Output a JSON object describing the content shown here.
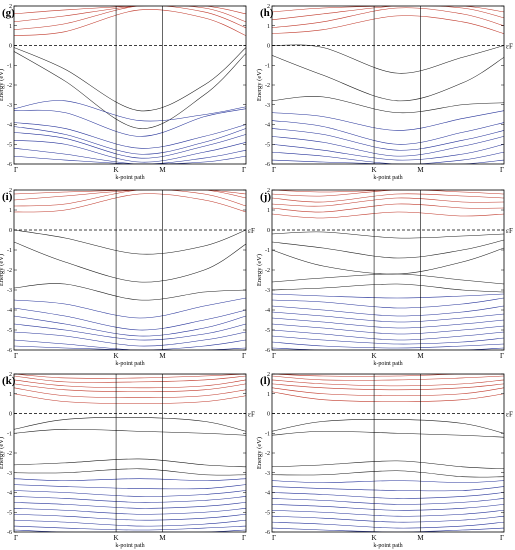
{
  "chart_data": [
    {
      "type": "line",
      "panel_label": "(g)",
      "x_ticks": [
        "Γ",
        "K",
        "M",
        "Γ"
      ],
      "xlabel": "k-point path",
      "ylabel": "Energy (eV)",
      "ylim": [
        -6,
        2
      ],
      "y_ticks": [
        "-6",
        "-5",
        "-4",
        "-3",
        "-2",
        "-1",
        "0",
        "1",
        "2"
      ],
      "fermi_level": 0,
      "fermi_label": "εF",
      "show_fermi_label": false,
      "conduction_color": "#c0392b",
      "mid_valence_color": "#1f1f1f",
      "deep_valence_color": "#27349a",
      "conduction_bands": [
        [
          0.5,
          0.7,
          1.8,
          1.4,
          0.5
        ],
        [
          0.8,
          1.1,
          2.0,
          1.7,
          0.9
        ],
        [
          1.2,
          1.5,
          2.0,
          1.9,
          1.2
        ],
        [
          1.6,
          1.8,
          2.0,
          2.0,
          1.6
        ]
      ],
      "valence_bands": [
        [
          -0.1,
          -1.2,
          -3.3,
          -2.0,
          -0.1
        ],
        [
          -0.3,
          -1.8,
          -4.2,
          -2.5,
          -0.4
        ],
        [
          -3.2,
          -2.8,
          -3.8,
          -3.5,
          -3.1
        ],
        [
          -3.3,
          -3.4,
          -4.6,
          -3.6,
          -3.2
        ],
        [
          -3.9,
          -4.2,
          -5.2,
          -4.6,
          -4.0
        ],
        [
          -4.1,
          -4.5,
          -5.5,
          -4.9,
          -4.2
        ],
        [
          -4.4,
          -4.7,
          -5.7,
          -5.1,
          -4.5
        ],
        [
          -4.8,
          -5.0,
          -5.9,
          -5.4,
          -4.9
        ],
        [
          -5.2,
          -5.5,
          -6.0,
          -5.7,
          -5.3
        ],
        [
          -5.6,
          -5.8,
          -6.0,
          -5.9,
          -5.6
        ]
      ]
    },
    {
      "type": "line",
      "panel_label": "(h)",
      "x_ticks": [
        "Γ",
        "K",
        "M",
        "Γ"
      ],
      "xlabel": "k-point path",
      "ylabel": "Energy (eV)",
      "ylim": [
        -6,
        2
      ],
      "y_ticks": [
        "-6",
        "-5",
        "-4",
        "-3",
        "-2",
        "-1",
        "0",
        "1",
        "2"
      ],
      "fermi_level": 0,
      "fermi_label": "εF",
      "show_fermi_label": true,
      "conduction_color": "#c0392b",
      "mid_valence_color": "#1f1f1f",
      "deep_valence_color": "#27349a",
      "conduction_bands": [
        [
          0.6,
          0.8,
          1.5,
          1.2,
          0.6
        ],
        [
          0.9,
          1.2,
          1.9,
          1.6,
          1.0
        ],
        [
          1.3,
          1.6,
          2.0,
          1.9,
          1.4
        ],
        [
          1.7,
          1.9,
          2.0,
          2.0,
          1.7
        ]
      ],
      "valence_bands": [
        [
          0.0,
          -0.1,
          -1.4,
          -0.6,
          0.0
        ],
        [
          -0.5,
          -1.5,
          -2.8,
          -1.9,
          -0.6
        ],
        [
          -2.8,
          -2.6,
          -3.4,
          -3.0,
          -2.9
        ],
        [
          -3.4,
          -3.6,
          -4.3,
          -3.7,
          -3.3
        ],
        [
          -3.8,
          -4.1,
          -5.0,
          -4.4,
          -3.9
        ],
        [
          -4.2,
          -4.5,
          -5.3,
          -4.8,
          -4.3
        ],
        [
          -4.6,
          -4.9,
          -5.6,
          -5.1,
          -4.6
        ],
        [
          -5.0,
          -5.3,
          -5.8,
          -5.5,
          -5.0
        ],
        [
          -5.4,
          -5.6,
          -6.0,
          -5.8,
          -5.4
        ],
        [
          -5.8,
          -5.9,
          -6.0,
          -6.0,
          -5.8
        ]
      ]
    },
    {
      "type": "line",
      "panel_label": "(i)",
      "x_ticks": [
        "Γ",
        "K",
        "M",
        "Γ"
      ],
      "xlabel": "k-point path",
      "ylabel": "Energy (eV)",
      "ylim": [
        -6,
        2
      ],
      "y_ticks": [
        "-6",
        "-5",
        "-4",
        "-3",
        "-2",
        "-1",
        "0",
        "1",
        "2"
      ],
      "fermi_level": 0,
      "fermi_label": "εF",
      "show_fermi_label": true,
      "conduction_color": "#c0392b",
      "mid_valence_color": "#1f1f1f",
      "deep_valence_color": "#27349a",
      "conduction_bands": [
        [
          0.9,
          1.0,
          1.8,
          1.5,
          0.9
        ],
        [
          1.2,
          1.3,
          2.0,
          1.8,
          1.2
        ],
        [
          1.5,
          1.7,
          2.0,
          2.0,
          1.6
        ],
        [
          1.8,
          1.9,
          2.0,
          2.0,
          1.8
        ]
      ],
      "valence_bands": [
        [
          0.0,
          -0.4,
          -1.2,
          -0.8,
          0.0
        ],
        [
          -0.6,
          -1.6,
          -2.6,
          -2.0,
          -0.7
        ],
        [
          -2.9,
          -2.7,
          -3.5,
          -3.1,
          -3.0
        ],
        [
          -3.5,
          -3.7,
          -4.4,
          -3.8,
          -3.4
        ],
        [
          -3.9,
          -4.3,
          -5.0,
          -4.5,
          -4.0
        ],
        [
          -4.3,
          -4.7,
          -5.3,
          -4.9,
          -4.3
        ],
        [
          -4.7,
          -5.0,
          -5.5,
          -5.2,
          -4.7
        ],
        [
          -5.1,
          -5.3,
          -5.8,
          -5.5,
          -5.1
        ],
        [
          -5.5,
          -5.7,
          -6.0,
          -5.8,
          -5.5
        ],
        [
          -5.8,
          -5.9,
          -6.0,
          -6.0,
          -5.9
        ]
      ]
    },
    {
      "type": "line",
      "panel_label": "(j)",
      "x_ticks": [
        "Γ",
        "K",
        "M",
        "Γ"
      ],
      "xlabel": "k-point path",
      "ylabel": "Energy (eV)",
      "ylim": [
        -6,
        2
      ],
      "y_ticks": [
        "-6",
        "-5",
        "-4",
        "-3",
        "-2",
        "-1",
        "0",
        "1",
        "2"
      ],
      "fermi_level": 0,
      "fermi_label": "εF",
      "show_fermi_label": true,
      "conduction_color": "#c0392b",
      "mid_valence_color": "#1f1f1f",
      "deep_valence_color": "#27349a",
      "conduction_bands": [
        [
          0.8,
          0.6,
          0.9,
          0.7,
          0.8
        ],
        [
          1.1,
          0.9,
          1.3,
          1.1,
          1.1
        ],
        [
          1.3,
          1.2,
          1.6,
          1.4,
          1.4
        ],
        [
          1.6,
          1.4,
          1.8,
          1.7,
          1.6
        ],
        [
          1.8,
          1.7,
          2.0,
          1.9,
          1.8
        ],
        [
          2.0,
          1.9,
          2.0,
          2.0,
          2.0
        ]
      ],
      "valence_bands": [
        [
          -0.2,
          -0.1,
          -0.4,
          -0.3,
          -0.2
        ],
        [
          -0.6,
          -0.9,
          -1.4,
          -1.0,
          -0.5
        ],
        [
          -1.0,
          -1.8,
          -2.2,
          -1.6,
          -0.9
        ],
        [
          -2.6,
          -2.4,
          -2.2,
          -2.5,
          -2.7
        ],
        [
          -3.0,
          -2.9,
          -2.7,
          -3.0,
          -3.1
        ],
        [
          -3.2,
          -3.3,
          -3.4,
          -3.3,
          -3.2
        ],
        [
          -3.5,
          -3.6,
          -3.9,
          -3.7,
          -3.4
        ],
        [
          -3.8,
          -4.0,
          -4.3,
          -4.1,
          -3.8
        ],
        [
          -4.1,
          -4.3,
          -4.6,
          -4.4,
          -4.2
        ],
        [
          -4.4,
          -4.6,
          -4.9,
          -4.7,
          -4.5
        ],
        [
          -4.7,
          -4.9,
          -5.2,
          -5.0,
          -4.8
        ],
        [
          -5.0,
          -5.2,
          -5.5,
          -5.3,
          -5.1
        ],
        [
          -5.3,
          -5.5,
          -5.7,
          -5.6,
          -5.4
        ],
        [
          -5.6,
          -5.8,
          -5.9,
          -5.8,
          -5.7
        ],
        [
          -5.9,
          -6.0,
          -6.0,
          -6.0,
          -5.9
        ]
      ]
    },
    {
      "type": "line",
      "panel_label": "(k)",
      "x_ticks": [
        "Γ",
        "K",
        "M",
        "Γ"
      ],
      "xlabel": "k-point path",
      "ylabel": "Energy (eV)",
      "ylim": [
        -6,
        2
      ],
      "y_ticks": [
        "-6",
        "-5",
        "-4",
        "-3",
        "-2",
        "-1",
        "0",
        "1",
        "2"
      ],
      "fermi_level": 0,
      "fermi_label": "εF",
      "show_fermi_label": true,
      "conduction_color": "#c0392b",
      "mid_valence_color": "#1f1f1f",
      "deep_valence_color": "#27349a",
      "conduction_bands": [
        [
          1.0,
          0.6,
          0.5,
          0.6,
          0.9
        ],
        [
          1.3,
          0.9,
          0.8,
          0.9,
          1.2
        ],
        [
          1.5,
          1.2,
          1.1,
          1.2,
          1.5
        ],
        [
          1.7,
          1.4,
          1.3,
          1.4,
          1.7
        ],
        [
          1.9,
          1.6,
          1.6,
          1.7,
          1.9
        ],
        [
          2.0,
          1.8,
          1.8,
          1.9,
          2.0
        ],
        [
          2.0,
          2.0,
          2.0,
          2.0,
          2.0
        ]
      ],
      "valence_bands": [
        [
          -0.8,
          -0.3,
          -0.2,
          -0.4,
          -0.9
        ],
        [
          -1.0,
          -0.8,
          -0.9,
          -1.0,
          -1.1
        ],
        [
          -2.6,
          -2.5,
          -2.3,
          -2.6,
          -2.7
        ],
        [
          -3.0,
          -3.0,
          -2.8,
          -3.1,
          -3.1
        ],
        [
          -3.3,
          -3.4,
          -3.3,
          -3.4,
          -3.3
        ],
        [
          -3.6,
          -3.7,
          -3.8,
          -3.8,
          -3.6
        ],
        [
          -3.9,
          -4.0,
          -4.2,
          -4.1,
          -3.9
        ],
        [
          -4.2,
          -4.3,
          -4.5,
          -4.4,
          -4.2
        ],
        [
          -4.5,
          -4.6,
          -4.8,
          -4.7,
          -4.5
        ],
        [
          -4.8,
          -4.9,
          -5.1,
          -5.0,
          -4.8
        ],
        [
          -5.1,
          -5.2,
          -5.4,
          -5.3,
          -5.1
        ],
        [
          -5.4,
          -5.5,
          -5.7,
          -5.6,
          -5.4
        ],
        [
          -5.7,
          -5.8,
          -5.9,
          -5.8,
          -5.7
        ],
        [
          -5.9,
          -6.0,
          -6.0,
          -6.0,
          -5.9
        ]
      ]
    },
    {
      "type": "line",
      "panel_label": "(l)",
      "x_ticks": [
        "Γ",
        "K",
        "M",
        "Γ"
      ],
      "xlabel": "k-point path",
      "ylabel": "Energy (eV)",
      "ylim": [
        -6,
        2
      ],
      "y_ticks": [
        "-6",
        "-5",
        "-4",
        "-3",
        "-2",
        "-1",
        "0",
        "1",
        "2"
      ],
      "fermi_level": 0,
      "fermi_label": "εF",
      "show_fermi_label": true,
      "conduction_color": "#c0392b",
      "mid_valence_color": "#1f1f1f",
      "deep_valence_color": "#27349a",
      "conduction_bands": [
        [
          1.1,
          0.7,
          0.6,
          0.7,
          1.0
        ],
        [
          1.3,
          1.0,
          0.9,
          1.0,
          1.3
        ],
        [
          1.5,
          1.3,
          1.2,
          1.3,
          1.5
        ],
        [
          1.7,
          1.5,
          1.4,
          1.5,
          1.7
        ],
        [
          1.9,
          1.7,
          1.7,
          1.8,
          1.9
        ],
        [
          2.0,
          1.9,
          1.9,
          2.0,
          2.0
        ],
        [
          2.0,
          2.0,
          2.0,
          2.0,
          2.0
        ]
      ],
      "valence_bands": [
        [
          -0.9,
          -0.4,
          -0.3,
          -0.5,
          -1.0
        ],
        [
          -1.1,
          -0.9,
          -1.0,
          -1.1,
          -1.2
        ],
        [
          -2.7,
          -2.6,
          -2.4,
          -2.7,
          -2.8
        ],
        [
          -3.1,
          -3.1,
          -2.9,
          -3.2,
          -3.2
        ],
        [
          -3.4,
          -3.5,
          -3.4,
          -3.5,
          -3.4
        ],
        [
          -3.7,
          -3.8,
          -3.9,
          -3.9,
          -3.7
        ],
        [
          -4.0,
          -4.1,
          -4.3,
          -4.2,
          -4.0
        ],
        [
          -4.3,
          -4.4,
          -4.6,
          -4.5,
          -4.3
        ],
        [
          -4.6,
          -4.7,
          -4.9,
          -4.8,
          -4.6
        ],
        [
          -4.9,
          -5.0,
          -5.2,
          -5.1,
          -4.9
        ],
        [
          -5.2,
          -5.3,
          -5.5,
          -5.4,
          -5.2
        ],
        [
          -5.5,
          -5.6,
          -5.8,
          -5.7,
          -5.5
        ],
        [
          -5.8,
          -5.9,
          -6.0,
          -5.9,
          -5.8
        ]
      ]
    }
  ]
}
